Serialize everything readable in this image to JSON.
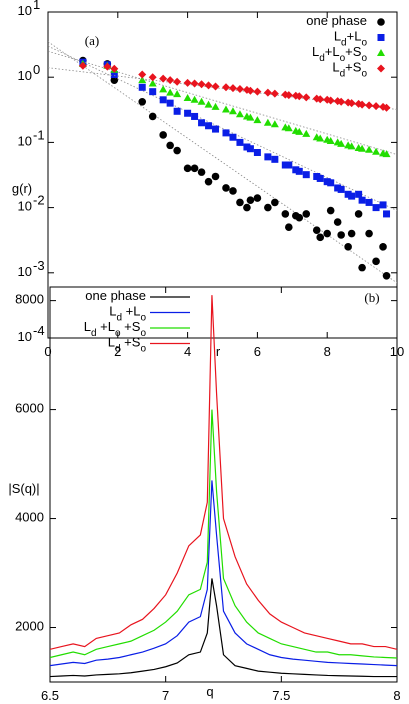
{
  "chart_data": [
    {
      "type": "scatter",
      "label": "(a)",
      "x_label": "r",
      "y_label": "g(r)",
      "log_y": true,
      "legend": "upper right",
      "xlim": [
        0,
        10
      ],
      "xticks": [
        0,
        2,
        4,
        6,
        8,
        10
      ],
      "ylim": [
        0.0001,
        10
      ],
      "yticks": [
        {
          "value": 0.0001,
          "label": "10",
          "exponent": "-4"
        },
        {
          "value": 0.001,
          "label": "10",
          "exponent": "-3"
        },
        {
          "value": 0.01,
          "label": "10",
          "exponent": "-2"
        },
        {
          "value": 0.1,
          "label": "10",
          "exponent": "-1"
        },
        {
          "value": 1,
          "label": "10",
          "exponent": "0"
        },
        {
          "value": 10,
          "label": "10",
          "exponent": "1"
        }
      ],
      "x": [
        1.0,
        1.7,
        1.9,
        2.7,
        3.0,
        3.3,
        3.5,
        3.7,
        4.0,
        4.2,
        4.4,
        4.6,
        4.8,
        5.1,
        5.3,
        5.5,
        5.7,
        5.8,
        6.0,
        6.3,
        6.5,
        6.8,
        6.9,
        7.1,
        7.2,
        7.4,
        7.7,
        7.8,
        8.0,
        8.1,
        8.3,
        8.4,
        8.6,
        8.7,
        8.9,
        9.0,
        9.2,
        9.4,
        9.6,
        9.7
      ],
      "fit_x": [
        0,
        10
      ],
      "series": [
        {
          "name": "one phase",
          "color": "#000000",
          "marker": "circle",
          "fit_values": [
            3.5,
            0.0007
          ],
          "values": [
            1.8,
            1.6,
            0.9,
            0.42,
            0.25,
            0.13,
            0.09,
            0.075,
            0.04,
            0.04,
            0.035,
            0.025,
            0.03,
            0.02,
            0.018,
            0.012,
            0.01,
            0.013,
            0.014,
            0.01,
            0.012,
            0.008,
            0.005,
            0.0075,
            0.007,
            0.008,
            0.0045,
            0.0035,
            0.004,
            0.009,
            0.006,
            0.0038,
            0.0025,
            0.004,
            0.008,
            0.0012,
            0.004,
            0.0015,
            0.0025,
            0.0009
          ]
        },
        {
          "name": "L_d+L_o",
          "color": "#0a1ee6",
          "marker": "square",
          "fit_values": [
            3.0,
            0.009
          ],
          "values": [
            1.7,
            1.55,
            1.1,
            0.7,
            0.6,
            0.45,
            0.4,
            0.3,
            0.28,
            0.25,
            0.2,
            0.18,
            0.16,
            0.14,
            0.12,
            0.1,
            0.085,
            0.08,
            0.07,
            0.06,
            0.055,
            0.045,
            0.045,
            0.038,
            0.036,
            0.032,
            0.03,
            0.028,
            0.025,
            0.024,
            0.02,
            0.019,
            0.016,
            0.015,
            0.016,
            0.013,
            0.012,
            0.01,
            0.011,
            0.008
          ]
        },
        {
          "name": "L_d+L_o+S_o",
          "color": "#22dd00",
          "marker": "triangle",
          "fit_values": [
            2.5,
            0.065
          ],
          "values": [
            1.6,
            1.5,
            1.3,
            0.9,
            0.8,
            0.65,
            0.58,
            0.55,
            0.48,
            0.45,
            0.42,
            0.38,
            0.35,
            0.32,
            0.3,
            0.27,
            0.25,
            0.24,
            0.22,
            0.2,
            0.19,
            0.17,
            0.165,
            0.15,
            0.145,
            0.135,
            0.12,
            0.115,
            0.11,
            0.105,
            0.1,
            0.095,
            0.09,
            0.087,
            0.082,
            0.08,
            0.077,
            0.072,
            0.068,
            0.066
          ]
        },
        {
          "name": "L_d+S_o",
          "color": "#e8141e",
          "marker": "diamond",
          "fit_values": [
            1.4,
            0.32
          ],
          "values": [
            1.5,
            1.45,
            1.35,
            1.1,
            1.0,
            0.95,
            0.9,
            0.85,
            0.82,
            0.8,
            0.78,
            0.75,
            0.72,
            0.7,
            0.68,
            0.66,
            0.64,
            0.62,
            0.6,
            0.58,
            0.56,
            0.54,
            0.53,
            0.52,
            0.51,
            0.49,
            0.47,
            0.46,
            0.45,
            0.44,
            0.43,
            0.42,
            0.41,
            0.4,
            0.39,
            0.38,
            0.37,
            0.36,
            0.35,
            0.34
          ]
        }
      ]
    },
    {
      "type": "line",
      "label": "(b)",
      "x_label": "q",
      "y_label": "|S(q)|",
      "legend": "upper left",
      "xlim": [
        6.5,
        8
      ],
      "xticks": [
        6.5,
        7,
        7.5,
        8
      ],
      "ylim": [
        1000,
        8250
      ],
      "yticks": [
        2000,
        4000,
        6000,
        8000
      ],
      "x": [
        6.5,
        6.55,
        6.6,
        6.65,
        6.7,
        6.75,
        6.8,
        6.85,
        6.9,
        6.95,
        7.0,
        7.05,
        7.1,
        7.15,
        7.18,
        7.2,
        7.22,
        7.25,
        7.3,
        7.35,
        7.4,
        7.45,
        7.5,
        7.55,
        7.6,
        7.65,
        7.7,
        7.75,
        7.8,
        7.85,
        7.9,
        7.95,
        8.0
      ],
      "series": [
        {
          "name": "one phase",
          "color": "#000000",
          "values": [
            1100,
            1110,
            1120,
            1110,
            1130,
            1140,
            1150,
            1170,
            1200,
            1230,
            1280,
            1350,
            1500,
            1550,
            1900,
            2900,
            2400,
            1500,
            1300,
            1250,
            1200,
            1180,
            1160,
            1150,
            1140,
            1130,
            1120,
            1115,
            1110,
            1105,
            1100,
            1100,
            1100
          ]
        },
        {
          "name": "L_d +L_o",
          "color": "#0a1ee6",
          "values": [
            1300,
            1330,
            1360,
            1340,
            1400,
            1420,
            1450,
            1500,
            1550,
            1620,
            1700,
            1850,
            2100,
            2200,
            2700,
            4700,
            3700,
            2300,
            1900,
            1700,
            1600,
            1500,
            1450,
            1420,
            1400,
            1380,
            1360,
            1350,
            1340,
            1330,
            1320,
            1310,
            1300
          ]
        },
        {
          "name": "L_d +L_o +S_o",
          "color": "#22dd00",
          "values": [
            1450,
            1500,
            1550,
            1500,
            1600,
            1650,
            1700,
            1750,
            1850,
            1950,
            2100,
            2300,
            2600,
            2700,
            3200,
            6000,
            4500,
            2900,
            2400,
            2100,
            1900,
            1800,
            1700,
            1650,
            1600,
            1550,
            1550,
            1500,
            1500,
            1480,
            1460,
            1450,
            1440
          ]
        },
        {
          "name": "L_d +S_o",
          "color": "#e8141e",
          "values": [
            1600,
            1650,
            1700,
            1650,
            1800,
            1850,
            1900,
            2050,
            2150,
            2350,
            2600,
            3000,
            3500,
            3700,
            4300,
            8100,
            6300,
            4000,
            3300,
            2800,
            2500,
            2250,
            2100,
            2000,
            1900,
            1850,
            1800,
            1750,
            1700,
            1700,
            1650,
            1650,
            1600
          ]
        }
      ]
    }
  ]
}
